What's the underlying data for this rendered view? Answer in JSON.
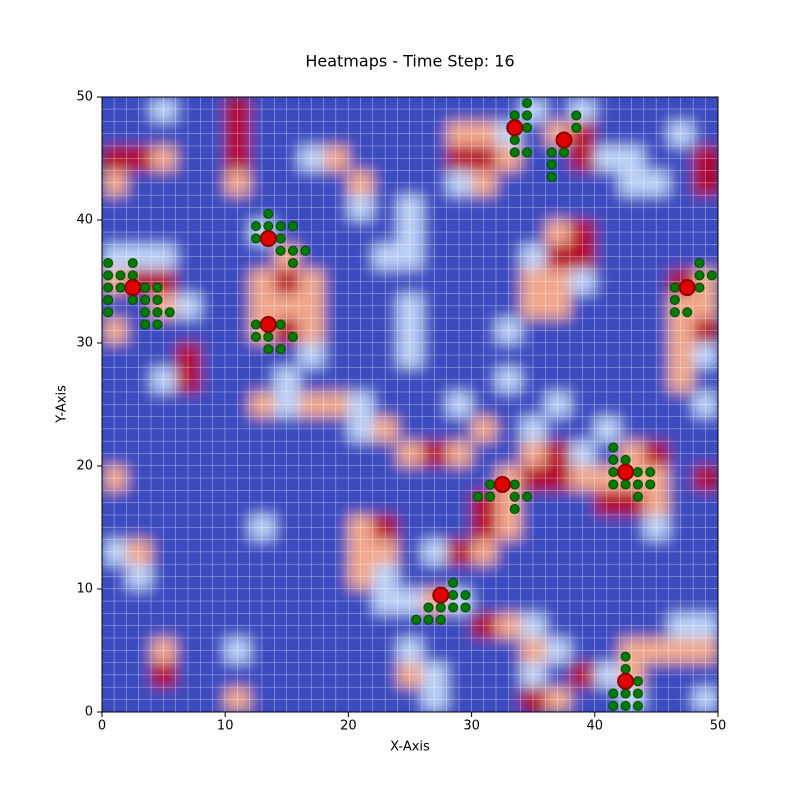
{
  "chart_data": {
    "type": "heatmap",
    "title": "Heatmaps - Time Step: 16",
    "xlabel": "X-Axis",
    "ylabel": "Y-Axis",
    "xlim": [
      0,
      50
    ],
    "ylim": [
      0,
      50
    ],
    "xticks": [
      0,
      10,
      20,
      30,
      40,
      50
    ],
    "yticks": [
      0,
      10,
      20,
      30,
      40,
      50
    ],
    "zlim": [
      0,
      3
    ],
    "colormap": [
      "#3b4cc0",
      "#bcd2f7",
      "#f1a98c",
      "#b40426"
    ],
    "z": [
      [
        0,
        0,
        1,
        0,
        0,
        3,
        0,
        0,
        0,
        0,
        0,
        0,
        0,
        0,
        0,
        0,
        0,
        1,
        0,
        1,
        0,
        0,
        0,
        0,
        0
      ],
      [
        0,
        0,
        0,
        0,
        0,
        3,
        0,
        0,
        0,
        0,
        0,
        0,
        0,
        0,
        2,
        2,
        1,
        0,
        2,
        3,
        0,
        0,
        0,
        1,
        0
      ],
      [
        3,
        3,
        2,
        0,
        0,
        3,
        0,
        0,
        1,
        2,
        0,
        0,
        0,
        0,
        3,
        3,
        2,
        0,
        0,
        3,
        1,
        1,
        0,
        0,
        3
      ],
      [
        2,
        0,
        0,
        0,
        0,
        2,
        0,
        0,
        0,
        0,
        2,
        0,
        0,
        0,
        1,
        2,
        0,
        0,
        0,
        0,
        0,
        1,
        1,
        0,
        3
      ],
      [
        0,
        0,
        0,
        0,
        0,
        0,
        0,
        0,
        0,
        0,
        1,
        0,
        1,
        0,
        0,
        0,
        0,
        0,
        0,
        0,
        0,
        0,
        0,
        0,
        0
      ],
      [
        0,
        0,
        0,
        0,
        0,
        0,
        1,
        0,
        0,
        0,
        0,
        0,
        1,
        0,
        0,
        0,
        0,
        0,
        2,
        3,
        0,
        0,
        0,
        0,
        0
      ],
      [
        1,
        1,
        1,
        0,
        0,
        0,
        0,
        2,
        0,
        0,
        0,
        1,
        1,
        0,
        0,
        0,
        0,
        1,
        3,
        3,
        0,
        0,
        0,
        0,
        0
      ],
      [
        2,
        3,
        3,
        0,
        0,
        0,
        2,
        3,
        2,
        0,
        0,
        0,
        0,
        0,
        0,
        0,
        0,
        2,
        2,
        1,
        0,
        0,
        0,
        3,
        2
      ],
      [
        0,
        0,
        2,
        1,
        0,
        0,
        2,
        2,
        2,
        0,
        0,
        0,
        1,
        0,
        0,
        0,
        0,
        2,
        2,
        0,
        0,
        0,
        0,
        2,
        2
      ],
      [
        2,
        0,
        0,
        0,
        0,
        0,
        2,
        3,
        2,
        0,
        0,
        0,
        1,
        0,
        0,
        0,
        1,
        0,
        0,
        0,
        0,
        0,
        0,
        2,
        3
      ],
      [
        0,
        0,
        0,
        3,
        0,
        0,
        0,
        0,
        1,
        0,
        0,
        0,
        1,
        0,
        0,
        0,
        0,
        0,
        0,
        0,
        0,
        0,
        0,
        2,
        1
      ],
      [
        0,
        0,
        1,
        3,
        0,
        0,
        0,
        1,
        0,
        0,
        0,
        0,
        0,
        0,
        0,
        0,
        1,
        0,
        0,
        0,
        0,
        0,
        0,
        2,
        0
      ],
      [
        0,
        0,
        0,
        0,
        0,
        0,
        2,
        1,
        2,
        2,
        1,
        0,
        0,
        0,
        1,
        0,
        0,
        0,
        1,
        0,
        0,
        0,
        0,
        0,
        1
      ],
      [
        0,
        0,
        0,
        0,
        0,
        0,
        0,
        0,
        0,
        0,
        1,
        2,
        0,
        0,
        0,
        2,
        0,
        1,
        0,
        0,
        1,
        0,
        0,
        0,
        0
      ],
      [
        0,
        0,
        0,
        0,
        0,
        0,
        0,
        0,
        0,
        0,
        0,
        0,
        2,
        3,
        2,
        0,
        0,
        2,
        3,
        1,
        0,
        2,
        3,
        0,
        0
      ],
      [
        2,
        0,
        0,
        0,
        0,
        0,
        0,
        0,
        0,
        0,
        0,
        0,
        0,
        0,
        0,
        0,
        2,
        3,
        3,
        2,
        2,
        2,
        2,
        0,
        3
      ],
      [
        0,
        0,
        0,
        0,
        0,
        0,
        0,
        0,
        0,
        0,
        0,
        0,
        0,
        0,
        0,
        3,
        2,
        0,
        0,
        0,
        3,
        3,
        2,
        0,
        0
      ],
      [
        0,
        0,
        0,
        0,
        0,
        0,
        1,
        0,
        0,
        0,
        2,
        3,
        0,
        0,
        0,
        3,
        2,
        0,
        0,
        0,
        0,
        0,
        1,
        0,
        0
      ],
      [
        1,
        2,
        0,
        0,
        0,
        0,
        0,
        0,
        0,
        0,
        2,
        2,
        0,
        1,
        3,
        2,
        0,
        0,
        0,
        0,
        0,
        0,
        0,
        0,
        0
      ],
      [
        0,
        1,
        0,
        0,
        0,
        0,
        0,
        0,
        0,
        0,
        2,
        1,
        0,
        0,
        0,
        0,
        0,
        0,
        0,
        0,
        0,
        0,
        0,
        0,
        0
      ],
      [
        0,
        0,
        0,
        0,
        0,
        0,
        0,
        0,
        0,
        0,
        0,
        1,
        1,
        2,
        1,
        0,
        0,
        0,
        0,
        0,
        0,
        0,
        0,
        0,
        0
      ],
      [
        0,
        0,
        0,
        0,
        0,
        0,
        0,
        0,
        0,
        0,
        0,
        0,
        0,
        0,
        0,
        3,
        2,
        1,
        0,
        0,
        0,
        0,
        0,
        1,
        1
      ],
      [
        0,
        0,
        2,
        0,
        0,
        1,
        0,
        0,
        0,
        0,
        0,
        0,
        1,
        0,
        0,
        0,
        0,
        2,
        1,
        0,
        0,
        2,
        2,
        2,
        2
      ],
      [
        0,
        0,
        3,
        0,
        0,
        0,
        0,
        0,
        0,
        0,
        0,
        0,
        2,
        1,
        0,
        0,
        0,
        1,
        0,
        3,
        1,
        2,
        0,
        0,
        0
      ],
      [
        0,
        0,
        0,
        0,
        0,
        2,
        0,
        0,
        0,
        0,
        0,
        0,
        0,
        1,
        0,
        0,
        0,
        3,
        2,
        0,
        0,
        1,
        0,
        0,
        1
      ]
    ],
    "neighbors": {
      "color": "#007a00",
      "x": [
        34.5,
        33.5,
        34.5,
        34.5,
        33.5,
        33.5,
        34.5,
        38.5,
        38.5,
        36.5,
        37.5,
        36.5,
        36.5,
        13.5,
        12.5,
        13.5,
        14.5,
        15.5,
        12.5,
        14.5,
        14.5,
        15.5,
        16.5,
        15.5,
        0.5,
        2.5,
        0.5,
        1.5,
        2.5,
        0.5,
        1.5,
        3.5,
        4.5,
        0.5,
        2.5,
        3.5,
        4.5,
        0.5,
        3.5,
        4.5,
        5.5,
        3.5,
        4.5,
        12.5,
        14.5,
        12.5,
        13.5,
        15.5,
        13.5,
        14.5,
        48.5,
        48.5,
        49.5,
        46.5,
        48.5,
        46.5,
        46.5,
        47.5,
        41.5,
        41.5,
        42.5,
        41.5,
        43.5,
        44.5,
        41.5,
        42.5,
        43.5,
        44.5,
        43.5,
        31.5,
        33.5,
        30.5,
        31.5,
        33.5,
        34.5,
        33.5,
        28.5,
        28.5,
        29.5,
        26.5,
        27.5,
        28.5,
        29.5,
        25.5,
        26.5,
        27.5,
        42.5,
        42.5,
        43.5,
        41.5,
        42.5,
        43.5,
        41.5,
        42.5,
        43.5
      ],
      "y": [
        49.5,
        48.5,
        48.5,
        47.5,
        46.5,
        45.5,
        45.5,
        48.5,
        47.5,
        45.5,
        45.5,
        44.5,
        43.5,
        40.5,
        39.5,
        39.5,
        39.5,
        39.5,
        38.5,
        38.5,
        37.5,
        37.5,
        37.5,
        36.5,
        36.5,
        36.5,
        35.5,
        35.5,
        35.5,
        34.5,
        34.5,
        34.5,
        34.5,
        33.5,
        33.5,
        33.5,
        33.5,
        32.5,
        32.5,
        32.5,
        32.5,
        31.5,
        31.5,
        31.5,
        31.5,
        30.5,
        30.5,
        30.5,
        29.5,
        29.5,
        36.5,
        35.5,
        35.5,
        34.5,
        34.5,
        33.5,
        32.5,
        32.5,
        21.5,
        20.5,
        20.5,
        19.5,
        19.5,
        19.5,
        18.5,
        18.5,
        18.5,
        18.5,
        17.5,
        18.5,
        18.5,
        17.5,
        17.5,
        17.5,
        17.5,
        16.5,
        10.5,
        9.5,
        9.5,
        8.5,
        8.5,
        8.5,
        8.5,
        7.5,
        7.5,
        7.5,
        4.5,
        3.5,
        2.5,
        1.5,
        1.5,
        1.5,
        0.5,
        0.5,
        0.5
      ]
    },
    "agents": {
      "color": "#e00000",
      "edge": "#8b0000",
      "x": [
        2.5,
        13.5,
        13.5,
        33.5,
        37.5,
        47.5,
        42.5,
        32.5,
        27.5,
        42.5
      ],
      "y": [
        34.5,
        38.5,
        31.5,
        47.5,
        46.5,
        34.5,
        19.5,
        18.5,
        9.5,
        2.5
      ]
    }
  }
}
